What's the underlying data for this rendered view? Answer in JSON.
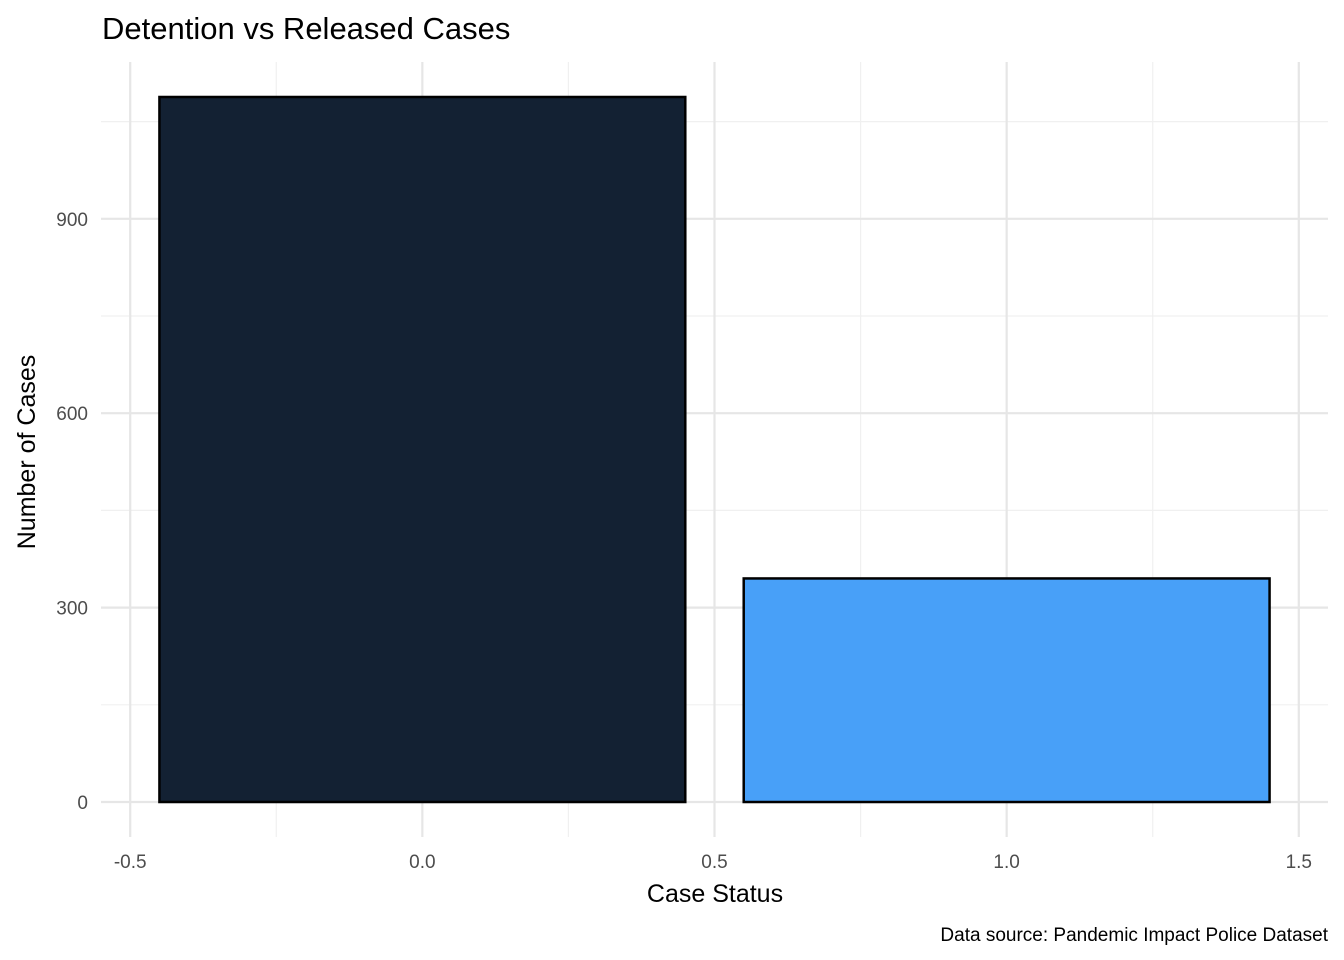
{
  "chart_data": {
    "type": "bar",
    "title": "Detention vs Released Cases",
    "xlabel": "Case Status",
    "ylabel": "Number of Cases",
    "caption": "Data source: Pandemic Impact Police Dataset",
    "x": [
      0,
      1
    ],
    "values": [
      1088,
      345
    ],
    "bar_width": 0.9,
    "colors": [
      "#132133",
      "#48a0f8"
    ],
    "xlim": [
      -0.55,
      1.55
    ],
    "ylim": [
      -54,
      1142
    ],
    "x_ticks": [
      -0.5,
      0.0,
      0.5,
      1.0,
      1.5
    ],
    "x_tick_labels": [
      "-0.5",
      "0.0",
      "0.5",
      "1.0",
      "1.5"
    ],
    "y_ticks": [
      0,
      300,
      600,
      900
    ],
    "y_tick_labels": [
      "0",
      "300",
      "600",
      "900"
    ],
    "grid": true,
    "legend": "none"
  }
}
